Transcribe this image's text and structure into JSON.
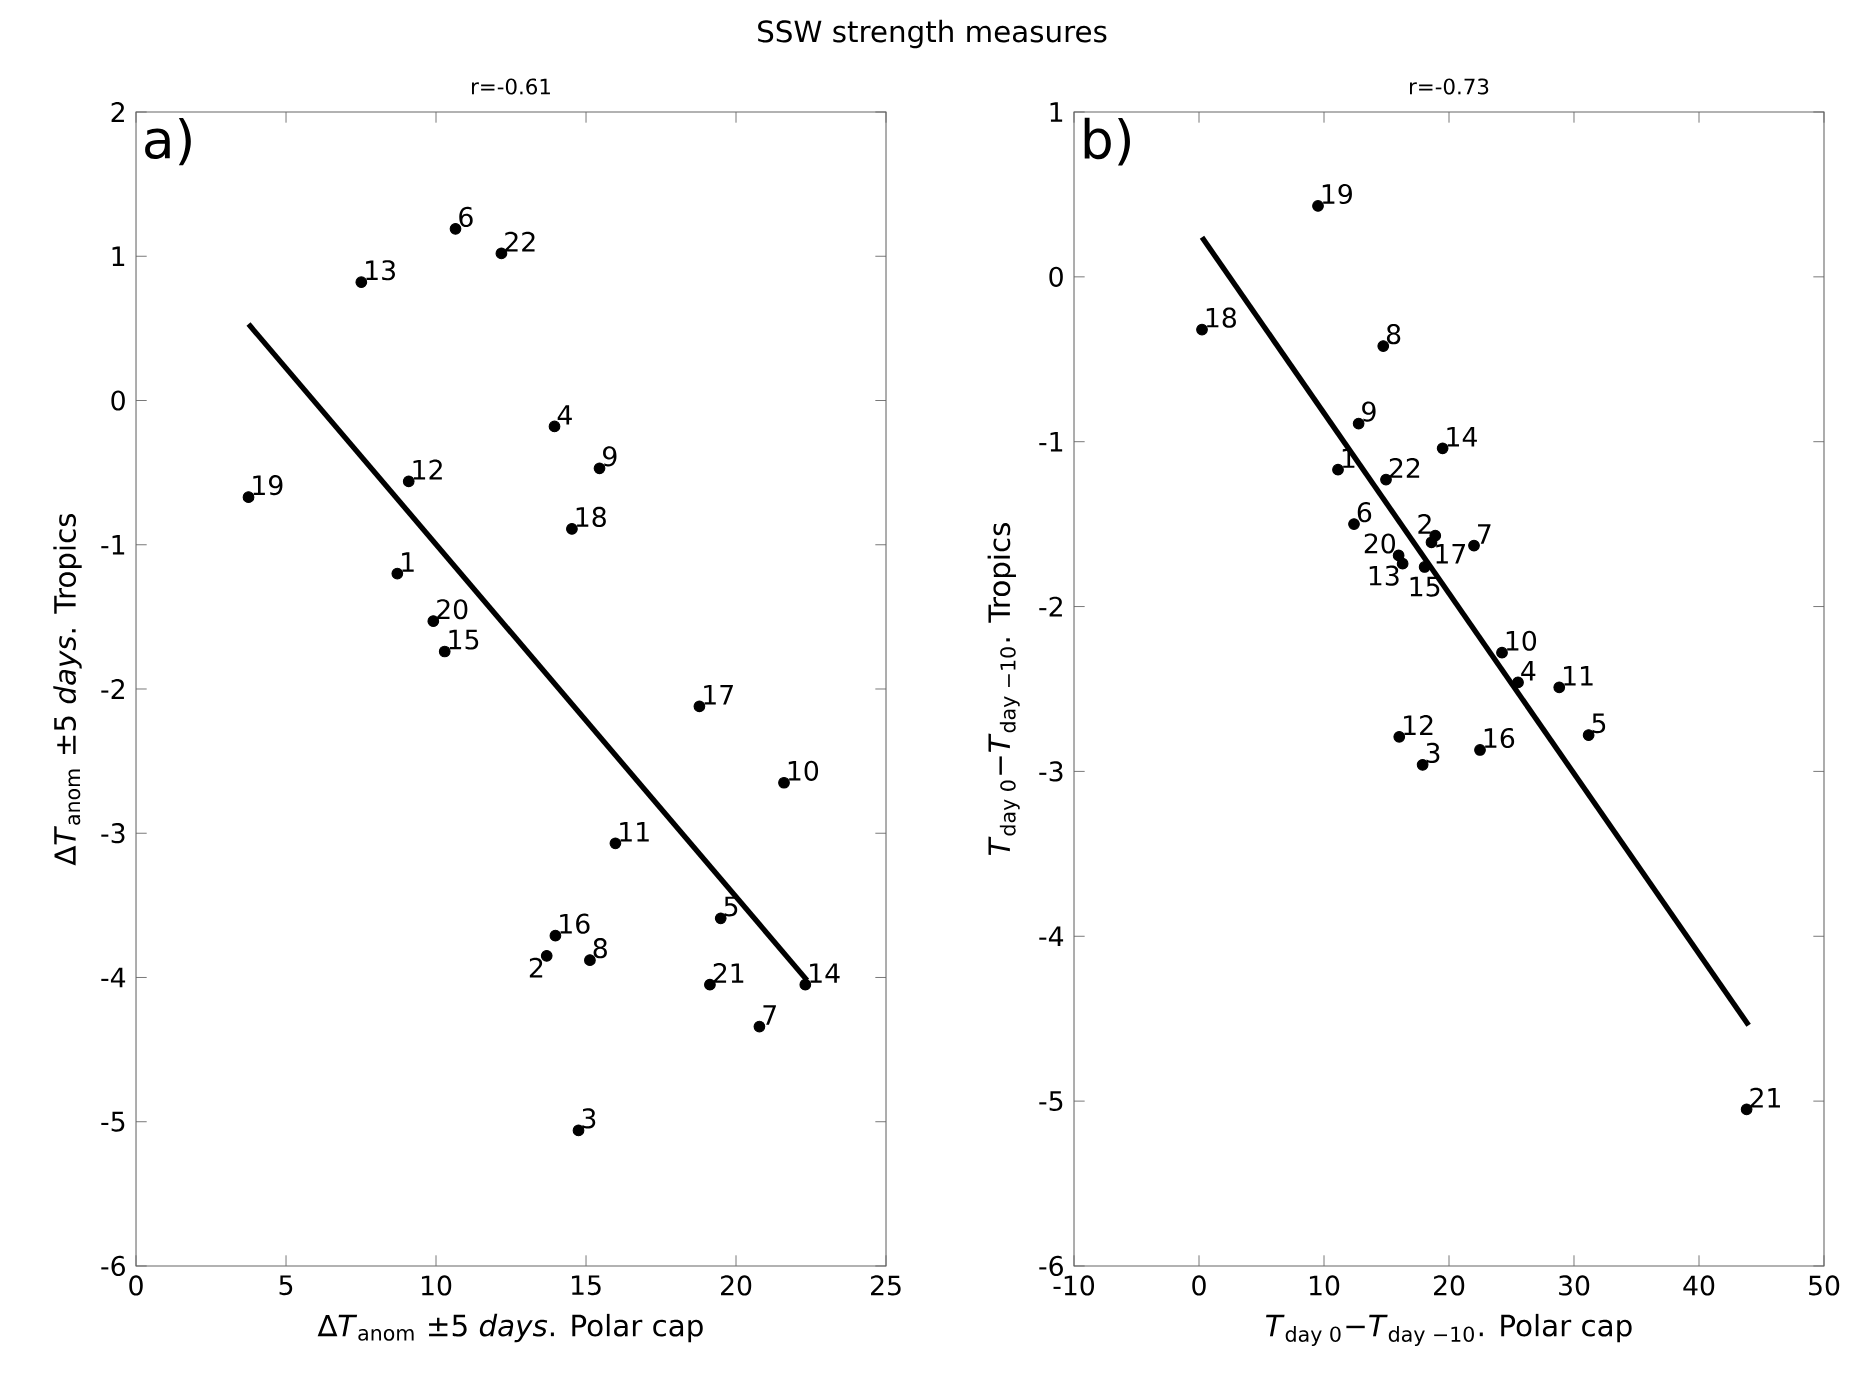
{
  "chart_data": [
    {
      "type": "scatter",
      "marker": "circle",
      "title": "SSW strength measures",
      "subtitle": "r=-0.61",
      "xlabel": "∆*T*$_{anom}$ ±5 *days*. Polar cap",
      "ylabel": "∆*T*$_{anom}$ ±5 *days*. Tropics",
      "xlim": [
        0,
        25
      ],
      "ylim": [
        -6,
        2
      ],
      "xticks": [
        0,
        5,
        10,
        15,
        20,
        25
      ],
      "yticks": [
        -6,
        -5,
        -4,
        -3,
        -2,
        -1,
        0,
        1,
        2
      ],
      "series": [
        {
          "color": "#000000",
          "x": [
            8.71,
            13.69,
            14.75,
            13.95,
            19.49,
            10.65,
            20.78,
            15.13,
            15.45,
            21.6,
            15.98,
            9.09,
            7.51,
            22.31,
            10.29,
            13.98,
            18.78,
            14.53,
            3.75,
            9.91,
            19.13,
            12.18
          ],
          "values": [
            -1.2,
            -3.85,
            -5.06,
            -0.18,
            -3.59,
            1.19,
            -4.34,
            -3.88,
            -0.47,
            -2.65,
            -3.07,
            -0.56,
            0.82,
            -4.05,
            -1.74,
            -3.71,
            -2.12,
            -0.89,
            -0.67,
            -1.53,
            -4.05,
            1.02
          ]
        },
        {
          "type": "line",
          "marker": "none",
          "color": "#000000",
          "x": [
            3.75,
            22.37
          ],
          "values": [
            0.53,
            -4.02
          ]
        }
      ],
      "annotations": [
        "a)",
        {
          "text": "1",
          "x": 8.71,
          "y": -1.2
        },
        {
          "text": "2",
          "x": 13.69,
          "y": -3.85
        },
        {
          "text": "3",
          "x": 14.75,
          "y": -5.06
        },
        {
          "text": "4",
          "x": 13.95,
          "y": -0.18
        },
        {
          "text": "5",
          "x": 19.49,
          "y": -3.59
        },
        {
          "text": "6",
          "x": 10.65,
          "y": 1.19
        },
        {
          "text": "7",
          "x": 20.78,
          "y": -4.34
        },
        {
          "text": "8",
          "x": 15.13,
          "y": -3.88
        },
        {
          "text": "9",
          "x": 15.45,
          "y": -0.47
        },
        {
          "text": "10",
          "x": 21.6,
          "y": -2.65
        },
        {
          "text": "11",
          "x": 15.98,
          "y": -3.07
        },
        {
          "text": "12",
          "x": 9.09,
          "y": -0.56
        },
        {
          "text": "13",
          "x": 7.51,
          "y": 0.82
        },
        {
          "text": "14",
          "x": 22.31,
          "y": -4.05
        },
        {
          "text": "15",
          "x": 10.29,
          "y": -1.74
        },
        {
          "text": "16",
          "x": 13.98,
          "y": -3.71
        },
        {
          "text": "17",
          "x": 18.78,
          "y": -2.12
        },
        {
          "text": "18",
          "x": 14.53,
          "y": -0.89
        },
        {
          "text": "19",
          "x": 3.75,
          "y": -0.67
        },
        {
          "text": "20",
          "x": 9.91,
          "y": -1.53
        },
        {
          "text": "21",
          "x": 19.13,
          "y": -4.05
        },
        {
          "text": "22",
          "x": 12.18,
          "y": 1.02
        }
      ]
    },
    {
      "type": "scatter",
      "marker": "circle",
      "subtitle": "r=-0.73",
      "xlabel": "*T*$_{day 0}$−*T*$_{day −10}$. Polar cap",
      "ylabel": "*T*$_{day 0}$−*T*$_{day −10}$. Tropics",
      "xlim": [
        -10,
        50
      ],
      "ylim": [
        -6,
        1
      ],
      "xticks": [
        -10,
        0,
        10,
        20,
        30,
        40,
        50
      ],
      "yticks": [
        -6,
        -5,
        -4,
        -3,
        -2,
        -1,
        0,
        1
      ],
      "series": [
        {
          "color": "#000000",
          "x": [
            11.12,
            18.9,
            17.89,
            25.52,
            31.17,
            12.4,
            22.0,
            14.74,
            12.77,
            24.24,
            28.82,
            16.02,
            16.29,
            19.49,
            18.05,
            22.48,
            18.6,
            0.24,
            9.52,
            15.97,
            43.81,
            14.96
          ],
          "values": [
            -1.17,
            -1.57,
            -2.96,
            -2.46,
            -2.78,
            -1.5,
            -1.63,
            -0.42,
            -0.89,
            -2.28,
            -2.49,
            -2.79,
            -1.74,
            -1.04,
            -1.76,
            -2.87,
            -1.61,
            -0.32,
            0.43,
            -1.69,
            -5.05,
            -1.23
          ]
        },
        {
          "type": "line",
          "marker": "none",
          "color": "#000000",
          "x": [
            0.24,
            43.97
          ],
          "values": [
            0.24,
            -4.54
          ]
        }
      ],
      "annotations": [
        "b)",
        {
          "text": "1",
          "x": 11.12,
          "y": -1.17
        },
        {
          "text": "2",
          "x": 18.9,
          "y": -1.57
        },
        {
          "text": "3",
          "x": 17.89,
          "y": -2.96
        },
        {
          "text": "4",
          "x": 25.52,
          "y": -2.46
        },
        {
          "text": "5",
          "x": 31.17,
          "y": -2.78
        },
        {
          "text": "6",
          "x": 12.4,
          "y": -1.5
        },
        {
          "text": "7",
          "x": 22.0,
          "y": -1.63
        },
        {
          "text": "8",
          "x": 14.74,
          "y": -0.42
        },
        {
          "text": "9",
          "x": 12.77,
          "y": -0.89
        },
        {
          "text": "10",
          "x": 24.24,
          "y": -2.28
        },
        {
          "text": "11",
          "x": 28.82,
          "y": -2.49
        },
        {
          "text": "12",
          "x": 16.02,
          "y": -2.79
        },
        {
          "text": "13",
          "x": 16.29,
          "y": -1.74
        },
        {
          "text": "14",
          "x": 19.49,
          "y": -1.04
        },
        {
          "text": "15",
          "x": 18.05,
          "y": -1.76
        },
        {
          "text": "16",
          "x": 22.48,
          "y": -2.87
        },
        {
          "text": "17",
          "x": 18.6,
          "y": -1.61
        },
        {
          "text": "18",
          "x": 0.24,
          "y": -0.32
        },
        {
          "text": "19",
          "x": 9.52,
          "y": 0.43
        },
        {
          "text": "20",
          "x": 15.97,
          "y": -1.69
        },
        {
          "text": "21",
          "x": 43.81,
          "y": -5.05
        },
        {
          "text": "22",
          "x": 14.96,
          "y": -1.23
        }
      ]
    }
  ]
}
